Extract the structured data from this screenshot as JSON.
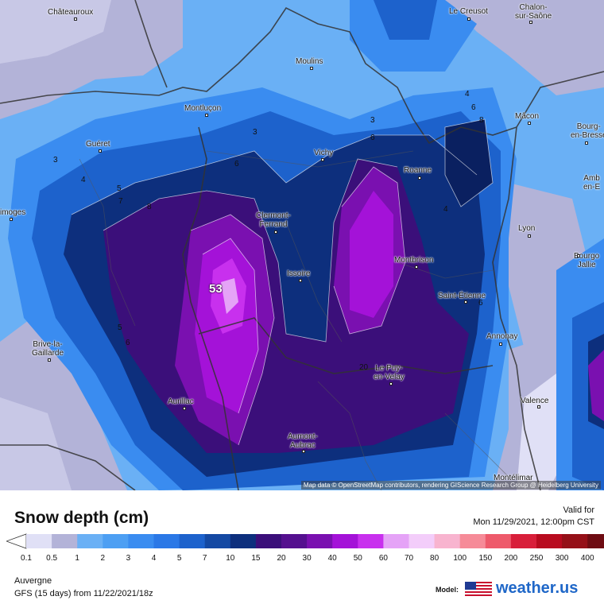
{
  "map": {
    "peak_value": "53",
    "contour_labels": [
      "3",
      "4",
      "5",
      "7",
      "8",
      "3",
      "4",
      "6",
      "8",
      "6",
      "5",
      "6",
      "6",
      "3",
      "4",
      "6",
      "8",
      "6",
      "20"
    ],
    "cities": [
      {
        "name": "Châteauroux"
      },
      {
        "name": "Le Creusot"
      },
      {
        "name": "Chalon-\nsur-Saône"
      },
      {
        "name": "Moulins"
      },
      {
        "name": "Montluçon"
      },
      {
        "name": "Mâcon"
      },
      {
        "name": "Guéret"
      },
      {
        "name": "Vichy"
      },
      {
        "name": "Bourg-\nen-Bresse"
      },
      {
        "name": "Roanne"
      },
      {
        "name": "Amb\nen-E"
      },
      {
        "name": "imoges"
      },
      {
        "name": "Clermont-\nFerrand"
      },
      {
        "name": "Lyon"
      },
      {
        "name": "Montbrison"
      },
      {
        "name": "Bourgo\nJallie"
      },
      {
        "name": "Issoire"
      },
      {
        "name": "Saint-Étienne"
      },
      {
        "name": "Brive-la-\nGaillarde"
      },
      {
        "name": "Annonay"
      },
      {
        "name": "Le Puy-\nen-Velay"
      },
      {
        "name": "Aurillac"
      },
      {
        "name": "Valence"
      },
      {
        "name": "Aumont-\nAubrac"
      },
      {
        "name": "Montélimar"
      }
    ],
    "attribution": "Map data © OpenStreetMap contributors, rendering GIScience Research Group @ Heidelberg University"
  },
  "legend": {
    "title": "Snow depth (cm)",
    "valid_label": "Valid for",
    "valid_time": "Mon 11/29/2021, 12:00pm CST",
    "ticks": [
      "0.1",
      "0.5",
      "1",
      "2",
      "3",
      "4",
      "5",
      "7",
      "10",
      "15",
      "20",
      "30",
      "40",
      "50",
      "60",
      "70",
      "80",
      "100",
      "150",
      "200",
      "250",
      "300",
      "400"
    ],
    "colors": [
      "#e0e0f6",
      "#b3b3d8",
      "#6ab0f5",
      "#4d9ff3",
      "#3a8cf0",
      "#2b78e6",
      "#1d62cc",
      "#1449a3",
      "#0d2f7d",
      "#3b0f7a",
      "#55108f",
      "#7a10b0",
      "#a412d8",
      "#c830ee",
      "#e5a3f7",
      "#f3cdfa",
      "#f8b4cf",
      "#f68b98",
      "#ee5a6b",
      "#d81f3a",
      "#b80b1f",
      "#951018",
      "#6e0c12"
    ],
    "region": "Auvergne",
    "model_run": "GFS (15 days) from 11/22/2021/18z",
    "model_label": "Model:",
    "brand": "weather.",
    "brand_tld": "us"
  }
}
